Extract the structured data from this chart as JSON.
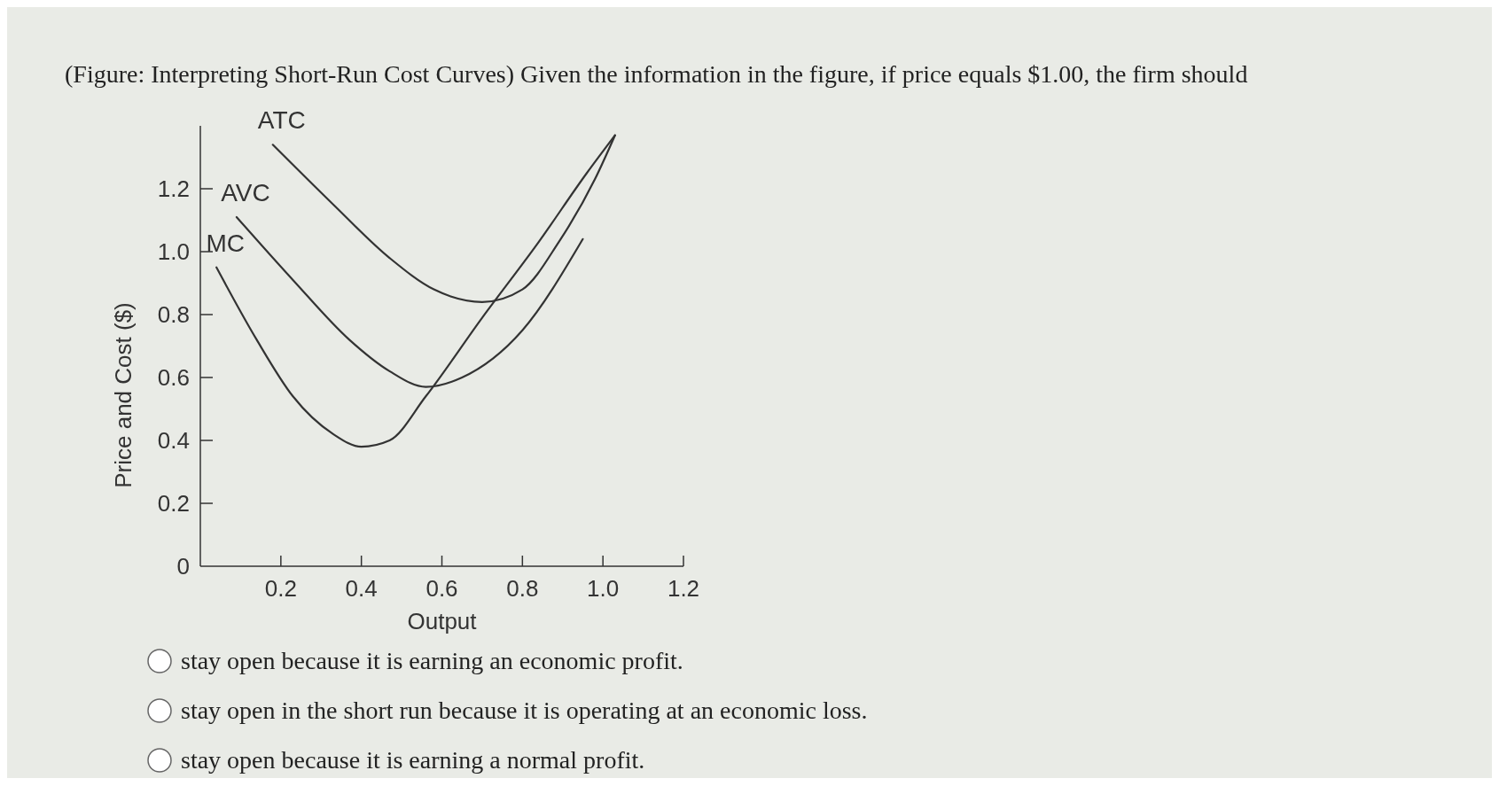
{
  "chart_data": {
    "type": "line",
    "title": "(Figure: Interpreting Short-Run Cost Curves) Given the information in the figure, if price equals $1.00, the firm should",
    "xlabel": "Output",
    "ylabel": "Price and Cost ($)",
    "xlim": [
      0,
      1.2
    ],
    "xticks": [
      {
        "value": 0.2,
        "label": "0.2"
      },
      {
        "value": 0.4,
        "label": "0.4"
      },
      {
        "value": 0.6,
        "label": "0.6"
      },
      {
        "value": 0.8,
        "label": "0.8"
      },
      {
        "value": 1,
        "label": "1.0"
      },
      {
        "value": 1.2,
        "label": "1.2"
      }
    ],
    "ylim": [
      0,
      1.4
    ],
    "yticks": [
      0,
      {
        "value": 0.2,
        "label": "0.2"
      },
      {
        "value": 0.4,
        "label": "0.4"
      },
      {
        "value": 0.6,
        "label": "0.6"
      },
      {
        "value": 0.8,
        "label": "0.8"
      },
      {
        "value": 1,
        "label": "1.0"
      },
      {
        "value": 1.2,
        "label": "1.2"
      }
    ],
    "grid": false,
    "marker": "none",
    "line_style": "solid",
    "series": [
      {
        "name": "ATC",
        "color": "#333333",
        "x": [
          0.18,
          0.33,
          0.47,
          0.58,
          0.7,
          0.8,
          0.89,
          0.98,
          1.03
        ],
        "values": [
          1.34,
          1.15,
          0.98,
          0.88,
          0.84,
          0.88,
          1.03,
          1.23,
          1.37
        ]
      },
      {
        "name": "AVC",
        "color": "#333333",
        "x": [
          0.09,
          0.23,
          0.37,
          0.47,
          0.56,
          0.65,
          0.8,
          0.95
        ],
        "values": [
          1.11,
          0.91,
          0.72,
          0.62,
          0.57,
          0.6,
          0.75,
          1.04
        ]
      },
      {
        "name": "MC",
        "color": "#333333",
        "x": [
          0.04,
          0.14,
          0.23,
          0.33,
          0.4,
          0.47,
          0.56,
          0.7,
          0.84,
          0.96,
          1.03
        ],
        "values": [
          0.95,
          0.72,
          0.54,
          0.42,
          0.38,
          0.4,
          0.54,
          0.79,
          1.03,
          1.25,
          1.37
        ]
      }
    ],
    "annotations": [
      "stay open because it is earning an economic profit.",
      "stay open in the short run because it is operating at an economic loss.",
      "stay open because it is earning a normal profit."
    ]
  }
}
